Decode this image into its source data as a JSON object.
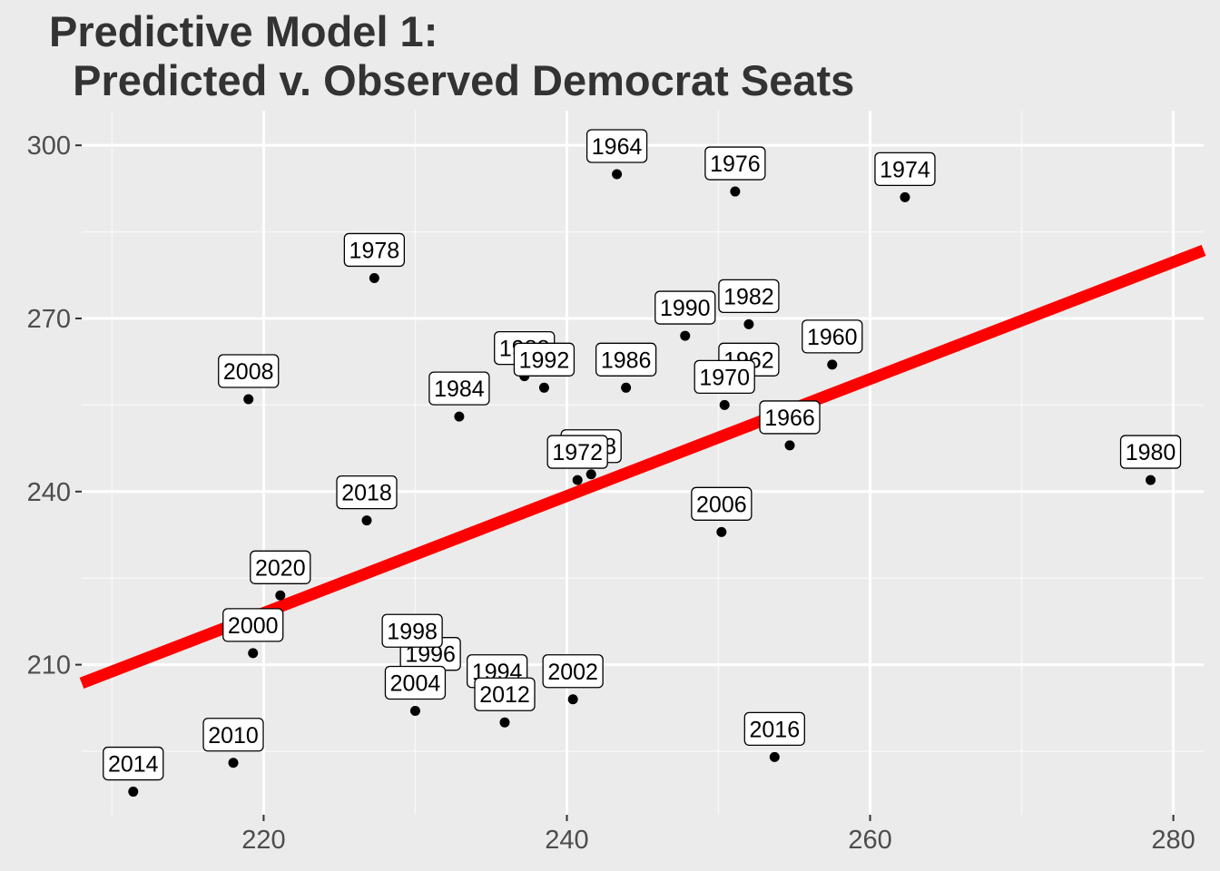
{
  "chart_data": {
    "type": "scatter",
    "title_line1": "Predictive Model 1:",
    "title_line2": "  Predicted v. Observed Democrat Seats",
    "xlabel": "",
    "ylabel": "",
    "xlim": [
      208,
      282
    ],
    "ylim": [
      184,
      306
    ],
    "x_ticks": [
      220,
      240,
      260,
      280
    ],
    "y_ticks": [
      210,
      240,
      270,
      300
    ],
    "grid": true,
    "points": [
      {
        "label": "1960",
        "x": 257.5,
        "y": 262
      },
      {
        "label": "1962",
        "x": 252.0,
        "y": 258
      },
      {
        "label": "1964",
        "x": 243.3,
        "y": 295
      },
      {
        "label": "1966",
        "x": 254.7,
        "y": 248
      },
      {
        "label": "1968",
        "x": 241.6,
        "y": 243
      },
      {
        "label": "1970",
        "x": 250.4,
        "y": 255
      },
      {
        "label": "1972",
        "x": 240.7,
        "y": 242
      },
      {
        "label": "1974",
        "x": 262.3,
        "y": 291
      },
      {
        "label": "1976",
        "x": 251.1,
        "y": 292
      },
      {
        "label": "1978",
        "x": 227.3,
        "y": 277
      },
      {
        "label": "1980",
        "x": 278.5,
        "y": 242
      },
      {
        "label": "1982",
        "x": 252.0,
        "y": 269
      },
      {
        "label": "1984",
        "x": 232.9,
        "y": 253
      },
      {
        "label": "1986",
        "x": 243.9,
        "y": 258
      },
      {
        "label": "1988",
        "x": 237.2,
        "y": 260
      },
      {
        "label": "1990",
        "x": 247.8,
        "y": 267
      },
      {
        "label": "1992",
        "x": 238.5,
        "y": 258
      },
      {
        "label": "1994",
        "x": 235.4,
        "y": 204
      },
      {
        "label": "1996",
        "x": 231.0,
        "y": 207
      },
      {
        "label": "1998",
        "x": 229.8,
        "y": 211
      },
      {
        "label": "2000",
        "x": 219.3,
        "y": 212
      },
      {
        "label": "2002",
        "x": 240.4,
        "y": 204
      },
      {
        "label": "2004",
        "x": 230.0,
        "y": 202
      },
      {
        "label": "2006",
        "x": 250.2,
        "y": 233
      },
      {
        "label": "2008",
        "x": 219.0,
        "y": 256
      },
      {
        "label": "2010",
        "x": 218.0,
        "y": 193
      },
      {
        "label": "2012",
        "x": 235.9,
        "y": 200
      },
      {
        "label": "2014",
        "x": 211.4,
        "y": 188
      },
      {
        "label": "2016",
        "x": 253.7,
        "y": 194
      },
      {
        "label": "2018",
        "x": 226.8,
        "y": 235
      },
      {
        "label": "2020",
        "x": 221.1,
        "y": 222
      }
    ],
    "label_offsets_note": "",
    "fit_line": {
      "x": [
        208,
        282
      ],
      "y": [
        206.8,
        281.8
      ],
      "color": "#ff0000"
    },
    "colors": {
      "panel_background": "#ebebeb",
      "grid": "#ffffff",
      "point": "#000000",
      "line": "#ff0000",
      "title": "#333333",
      "tick_text": "#4d4d4d"
    }
  }
}
